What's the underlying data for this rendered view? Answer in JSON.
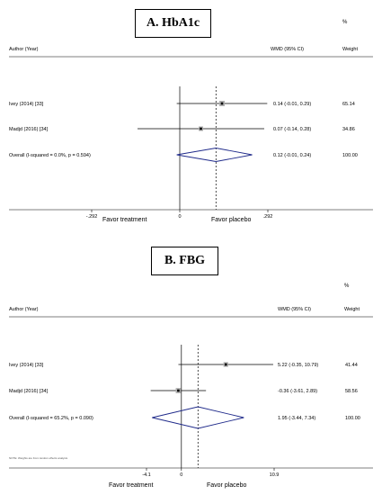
{
  "chart_data": [
    {
      "type": "forest",
      "title": "A. HbA1c",
      "header_left": "Author (Year)",
      "header_est": "WMD (95% CI)",
      "header_weight_symbol": "%",
      "header_weight": "Weight",
      "studies": [
        {
          "label": "Ivey (2014) [33]",
          "est": 0.14,
          "lo": -0.01,
          "hi": 0.29,
          "ci_text": "0.14 (-0.01, 0.29)",
          "weight": "65.14",
          "weight_val": 65.14
        },
        {
          "label": "Madjd (2016) [34]",
          "est": 0.07,
          "lo": -0.14,
          "hi": 0.28,
          "ci_text": "0.07 (-0.14, 0.28)",
          "weight": "34.86",
          "weight_val": 34.86
        }
      ],
      "overall": {
        "label": "Overall  (I-squared = 0.0%, p = 0.594)",
        "est": 0.12,
        "lo": -0.01,
        "hi": 0.24,
        "ci_text": "0.12 (-0.01, 0.24)",
        "weight": "100.00"
      },
      "xlim": [
        -0.292,
        0.292
      ],
      "ticks": [
        {
          "value": -0.292,
          "label": "-.292"
        },
        {
          "value": 0,
          "label": "0"
        },
        {
          "value": 0.292,
          "label": ".292"
        }
      ],
      "favor_left": "Favor treatment",
      "favor_right": "Favor placebo"
    },
    {
      "type": "forest",
      "title": "B. FBG",
      "header_left": "Author (Year)",
      "header_est": "WMD (95% CI)",
      "header_weight_symbol": "%",
      "header_weight": "Weight",
      "studies": [
        {
          "label": "Ivey (2014) [33]",
          "est": 5.22,
          "lo": -0.35,
          "hi": 10.79,
          "ci_text": "5.22 (-0.35, 10.79)",
          "weight": "41.44",
          "weight_val": 41.44
        },
        {
          "label": "Madjd (2016) [34]",
          "est": -0.36,
          "lo": -3.61,
          "hi": 2.89,
          "ci_text": "-0.36 (-3.61, 2.89)",
          "weight": "58.56",
          "weight_val": 58.56
        }
      ],
      "overall": {
        "label": "Overall  (I-squared = 65.2%, p = 0.090)",
        "est": 1.95,
        "lo": -3.44,
        "hi": 7.34,
        "ci_text": "1.95 (-3.44, 7.34)",
        "weight": "100.00"
      },
      "xlim": [
        -4.1,
        10.9
      ],
      "ticks": [
        {
          "value": -4.1,
          "label": "-4.1"
        },
        {
          "value": 0,
          "label": "0"
        },
        {
          "value": 10.9,
          "label": "10.9"
        }
      ],
      "favor_left": "Favor treatment",
      "favor_right": "Favor placebo",
      "footnote": "NOTE: Weights are from random effects analysis"
    }
  ]
}
